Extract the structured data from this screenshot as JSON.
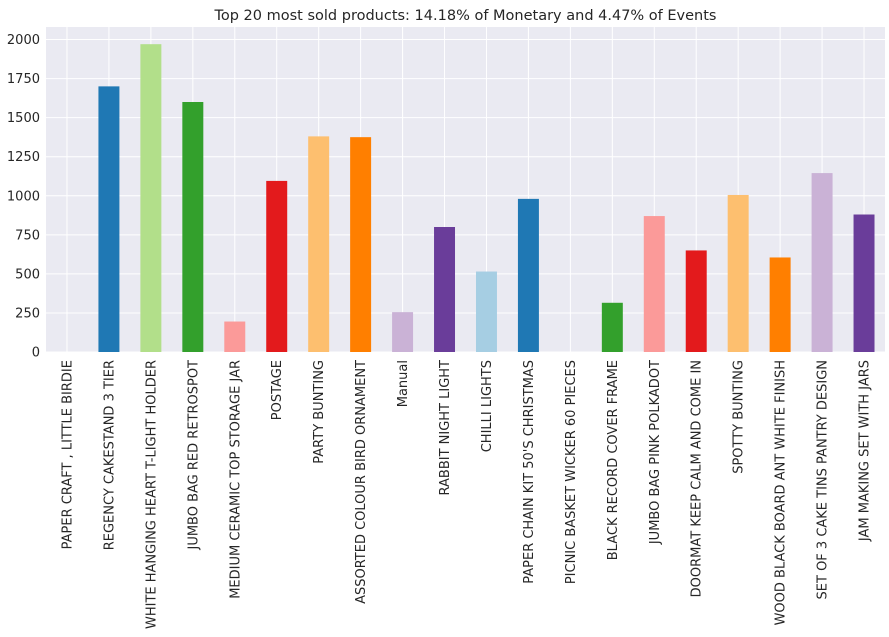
{
  "chart_data": {
    "type": "bar",
    "title": "Top 20 most sold products: 14.18% of Monetary and 4.47% of Events",
    "xlabel": "",
    "ylabel": "",
    "ylim": [
      0,
      2080
    ],
    "yticks": [
      0,
      250,
      500,
      750,
      1000,
      1250,
      1500,
      1750,
      2000
    ],
    "ytick_labels": [
      "0",
      "250",
      "500",
      "750",
      "1000",
      "1250",
      "1500",
      "1750",
      "2000"
    ],
    "grid": true,
    "categories": [
      "PAPER CRAFT , LITTLE BIRDIE",
      "REGENCY CAKESTAND 3 TIER",
      "WHITE HANGING HEART T-LIGHT HOLDER",
      "JUMBO BAG RED RETROSPOT",
      "MEDIUM CERAMIC TOP STORAGE JAR",
      "POSTAGE",
      "PARTY BUNTING",
      "ASSORTED COLOUR BIRD ORNAMENT",
      "Manual",
      "RABBIT NIGHT LIGHT",
      "CHILLI LIGHTS",
      "PAPER CHAIN KIT 50'S CHRISTMAS",
      "PICNIC BASKET WICKER 60 PIECES",
      "BLACK RECORD COVER FRAME",
      "JUMBO BAG PINK POLKADOT",
      "DOORMAT KEEP CALM AND COME IN",
      "SPOTTY BUNTING",
      "WOOD BLACK BOARD ANT WHITE FINISH",
      "SET OF 3 CAKE TINS PANTRY DESIGN",
      "JAM MAKING SET WITH JARS"
    ],
    "values": [
      0,
      1700,
      1970,
      1600,
      195,
      1095,
      1380,
      1375,
      255,
      800,
      515,
      980,
      0,
      315,
      870,
      650,
      1005,
      605,
      1145,
      880
    ],
    "colors": [
      "#a6cee3",
      "#1f78b4",
      "#b2df8a",
      "#33a02c",
      "#fb9a99",
      "#e31a1c",
      "#fdbf6f",
      "#ff7f00",
      "#cab2d6",
      "#6a3d9a",
      "#a6cee3",
      "#1f78b4",
      "#b2df8a",
      "#33a02c",
      "#fb9a99",
      "#e31a1c",
      "#fdbf6f",
      "#ff7f00",
      "#cab2d6",
      "#6a3d9a"
    ],
    "background_color": "#eaeaf2",
    "grid_color": "#ffffff"
  }
}
